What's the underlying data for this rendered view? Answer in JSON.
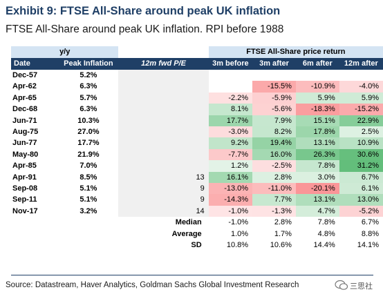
{
  "title": "Exhibit 9: FTSE All-Share around peak UK inflation",
  "subtitle": "FTSE All-Share around peak UK inflation. RPI before 1988",
  "header": {
    "yy": "y/y",
    "group": "FTSE All-Share price return",
    "date": "Date",
    "peak": "Peak Inflation",
    "pe": "12m fwd P/E",
    "m3b": "3m before",
    "m3a": "3m after",
    "m6a": "6m after",
    "m12a": "12m after"
  },
  "rows": [
    {
      "date": "Dec-57",
      "peak": "5.2%",
      "pe": "",
      "m3b": "",
      "m3a": "",
      "m6a": "",
      "m12a": ""
    },
    {
      "date": "Apr-62",
      "peak": "6.3%",
      "pe": "",
      "m3b": "",
      "m3a": "-15.5%",
      "m6a": "-10.9%",
      "m12a": "-4.0%"
    },
    {
      "date": "Apr-65",
      "peak": "5.7%",
      "pe": "",
      "m3b": "-2.2%",
      "m3a": "-5.9%",
      "m6a": "5.9%",
      "m12a": "5.9%"
    },
    {
      "date": "Dec-68",
      "peak": "6.3%",
      "pe": "",
      "m3b": "8.1%",
      "m3a": "-5.6%",
      "m6a": "-18.3%",
      "m12a": "-15.2%"
    },
    {
      "date": "Jun-71",
      "peak": "10.3%",
      "pe": "",
      "m3b": "17.7%",
      "m3a": "7.9%",
      "m6a": "15.1%",
      "m12a": "22.9%"
    },
    {
      "date": "Aug-75",
      "peak": "27.0%",
      "pe": "",
      "m3b": "-3.0%",
      "m3a": "8.2%",
      "m6a": "17.8%",
      "m12a": "2.5%"
    },
    {
      "date": "Jun-77",
      "peak": "17.7%",
      "pe": "",
      "m3b": "9.2%",
      "m3a": "19.4%",
      "m6a": "13.1%",
      "m12a": "10.9%"
    },
    {
      "date": "May-80",
      "peak": "21.9%",
      "pe": "",
      "m3b": "-7.7%",
      "m3a": "16.0%",
      "m6a": "26.3%",
      "m12a": "30.6%"
    },
    {
      "date": "Apr-85",
      "peak": "7.0%",
      "pe": "",
      "m3b": "1.2%",
      "m3a": "-2.5%",
      "m6a": "7.8%",
      "m12a": "31.2%"
    },
    {
      "date": "Apr-91",
      "peak": "8.5%",
      "pe": "13",
      "m3b": "16.1%",
      "m3a": "2.8%",
      "m6a": "3.0%",
      "m12a": "6.7%"
    },
    {
      "date": "Sep-08",
      "peak": "5.1%",
      "pe": "9",
      "m3b": "-13.0%",
      "m3a": "-11.0%",
      "m6a": "-20.1%",
      "m12a": "6.1%"
    },
    {
      "date": "Sep-11",
      "peak": "5.1%",
      "pe": "9",
      "m3b": "-14.3%",
      "m3a": "7.7%",
      "m6a": "13.1%",
      "m12a": "13.0%"
    },
    {
      "date": "Nov-17",
      "peak": "3.2%",
      "pe": "14",
      "m3b": "-1.0%",
      "m3a": "-1.3%",
      "m6a": "4.7%",
      "m12a": "-5.2%"
    }
  ],
  "stats": [
    {
      "label": "Median",
      "m3b": "-1.0%",
      "m3a": "2.8%",
      "m6a": "7.8%",
      "m12a": "6.7%"
    },
    {
      "label": "Average",
      "m3b": "1.0%",
      "m3a": "1.7%",
      "m6a": "4.8%",
      "m12a": "8.8%"
    },
    {
      "label": "SD",
      "m3b": "10.8%",
      "m3a": "10.6%",
      "m6a": "14.4%",
      "m12a": "14.1%"
    }
  ],
  "source": "Source: Datastream, Haver Analytics, Goldman Sachs Global Investment Research",
  "watermark": "三思社",
  "colors": {
    "title": "#1f3f66",
    "header_dark": "#1f3f66",
    "header_light": "#d4e4f3",
    "positive": "#63be7b",
    "negative": "#f8696b"
  }
}
